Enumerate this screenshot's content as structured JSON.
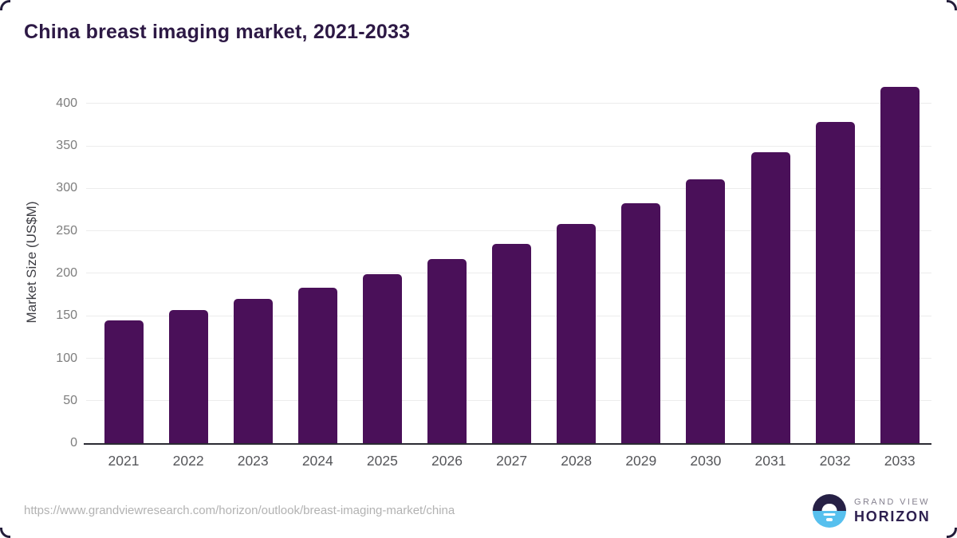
{
  "chart_data": {
    "type": "bar",
    "title": "China breast imaging market, 2021-2033",
    "categories": [
      "2021",
      "2022",
      "2023",
      "2024",
      "2025",
      "2026",
      "2027",
      "2028",
      "2029",
      "2030",
      "2031",
      "2032",
      "2033"
    ],
    "values": [
      145,
      157,
      170,
      183,
      199,
      217,
      235,
      258,
      283,
      311,
      343,
      378,
      420
    ],
    "xlabel": "",
    "ylabel": "Market Size (US$M)",
    "ylim": [
      0,
      430
    ],
    "yticks": [
      0,
      50,
      100,
      150,
      200,
      250,
      300,
      350,
      400
    ],
    "grid": true,
    "legend": "none",
    "bar_color": "#4a1059"
  },
  "footer": {
    "source_url": "https://www.grandviewresearch.com/horizon/outlook/breast-imaging-market/china",
    "logo": {
      "top_text": "GRAND VIEW",
      "bottom_text": "HORIZON"
    }
  },
  "colors": {
    "title_text": "#2d1945",
    "bar": "#4a1059",
    "axis_line": "#2b2b33",
    "gridline": "#ececec",
    "y_tick_text": "#7d7d7d",
    "x_tick_text": "#55565a",
    "source_text": "#b2b2b2",
    "logo_dark": "#262045",
    "logo_blue": "#57c0ee"
  }
}
